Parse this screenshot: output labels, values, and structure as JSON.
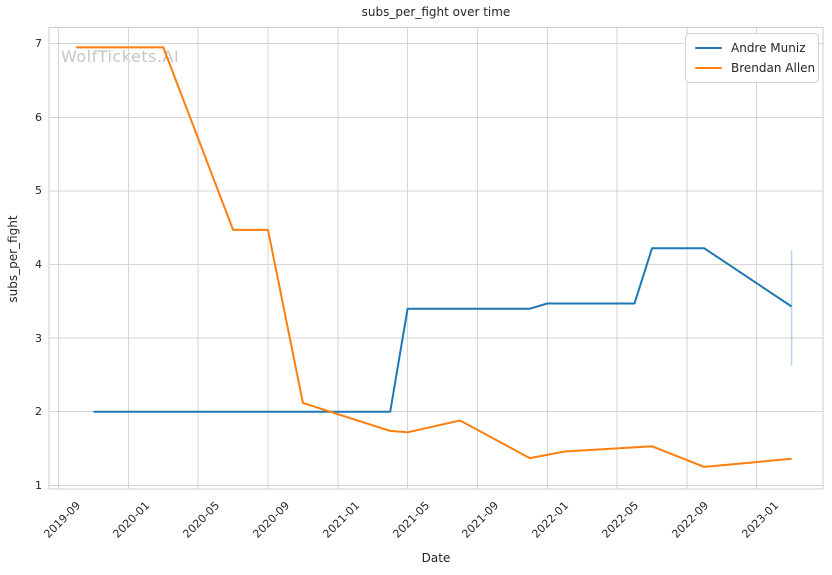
{
  "chart_data": {
    "type": "line",
    "title": "subs_per_fight over time",
    "xlabel": "Date",
    "ylabel": "subs_per_fight",
    "watermark": "WolfTickets.AI",
    "grid": true,
    "legend_position": "upper right",
    "colors": {
      "background": "#ffffff",
      "grid": "#d6d6d6",
      "spine": "#cccccc",
      "text": "#262626",
      "watermark": "#c6c6c6"
    },
    "x_ticks": [
      "2019-09",
      "2020-01",
      "2020-05",
      "2020-09",
      "2021-01",
      "2021-05",
      "2021-09",
      "2022-01",
      "2022-05",
      "2022-09",
      "2023-01"
    ],
    "y_ticks": [
      1,
      2,
      3,
      4,
      5,
      6,
      7
    ],
    "y_range": [
      0.95,
      7.22
    ],
    "x_range_months_from_2019_09": [
      -0.55,
      43.8
    ],
    "series": [
      {
        "name": "Andre Muniz",
        "color": "#1f77b4",
        "points": [
          [
            "2019-11",
            2.0
          ],
          [
            "2021-04",
            2.0
          ],
          [
            "2021-05",
            3.4
          ],
          [
            "2021-12",
            3.4
          ],
          [
            "2022-01",
            3.47
          ],
          [
            "2022-06",
            3.47
          ],
          [
            "2022-07",
            4.22
          ],
          [
            "2022-10",
            4.22
          ],
          [
            "2023-03",
            3.43
          ]
        ],
        "error_bar": {
          "date": "2023-03",
          "low": 2.63,
          "high": 4.19,
          "color": "rgba(31,119,180,0.3)"
        }
      },
      {
        "name": "Brendan Allen",
        "color": "#ff7f0e",
        "points": [
          [
            "2019-10",
            6.95
          ],
          [
            "2020-03",
            6.95
          ],
          [
            "2020-07",
            4.47
          ],
          [
            "2020-09",
            4.47
          ],
          [
            "2020-11",
            2.12
          ],
          [
            "2021-04",
            1.74
          ],
          [
            "2021-05",
            1.72
          ],
          [
            "2021-08",
            1.88
          ],
          [
            "2021-12",
            1.37
          ],
          [
            "2022-02",
            1.46
          ],
          [
            "2022-07",
            1.53
          ],
          [
            "2022-10",
            1.25
          ],
          [
            "2023-03",
            1.36
          ]
        ]
      }
    ]
  }
}
